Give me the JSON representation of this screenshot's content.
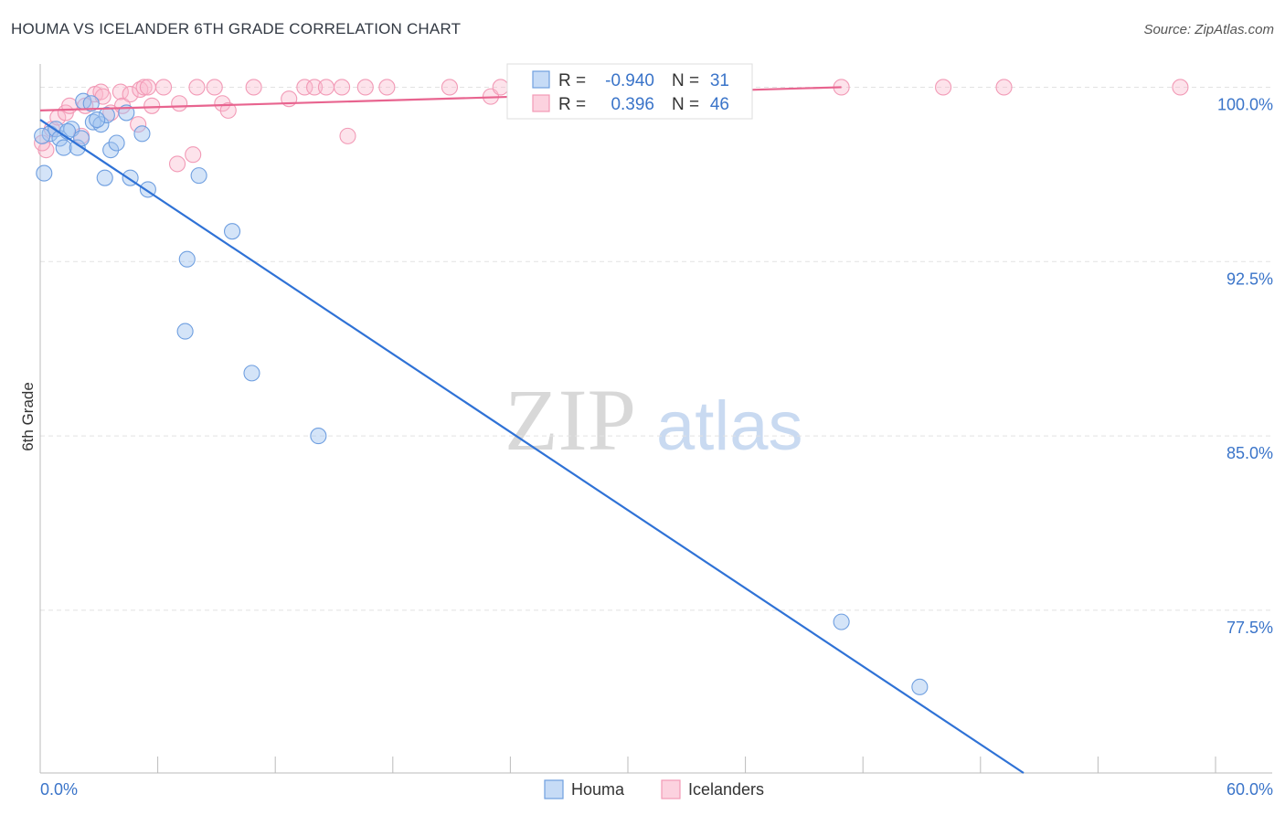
{
  "header": {
    "title": "HOUMA VS ICELANDER 6TH GRADE CORRELATION CHART",
    "source": "Source: ZipAtlas.com"
  },
  "watermark": {
    "zip": "ZIP",
    "atlas": "atlas"
  },
  "stats": {
    "rows": [
      {
        "r_label": "R =",
        "r_value": "-0.940",
        "n_label": "N =",
        "n_value": "31",
        "color": "#6f9fe0"
      },
      {
        "r_label": "R =",
        "r_value": "0.396",
        "n_label": "N =",
        "n_value": "46",
        "color": "#f29ab6"
      }
    ]
  },
  "legend": {
    "items": [
      {
        "label": "Houma",
        "color": "#6f9fe0"
      },
      {
        "label": "Icelanders",
        "color": "#f29ab6"
      }
    ]
  },
  "chart_data": {
    "type": "scatter",
    "title": "HOUMA VS ICELANDER 6TH GRADE CORRELATION CHART",
    "xlabel": "",
    "ylabel": "6th Grade",
    "xlim": [
      0,
      60
    ],
    "ylim": [
      70.5,
      101
    ],
    "x_tick_labels": [
      "0.0%",
      "60.0%"
    ],
    "y_ticks": [
      100,
      92.5,
      85,
      77.5
    ],
    "y_tick_labels": [
      "100.0%",
      "92.5%",
      "85.0%",
      "77.5%"
    ],
    "grid": true,
    "series": [
      {
        "name": "Houma",
        "color": "#6f9fe0",
        "trend": {
          "x": [
            0,
            50.2
          ],
          "y": [
            98.6,
            70.5
          ]
        },
        "points": [
          [
            0.2,
            96.3
          ],
          [
            0.5,
            98.0
          ],
          [
            0.8,
            98.2
          ],
          [
            1.0,
            97.8
          ],
          [
            1.2,
            97.4
          ],
          [
            1.6,
            98.2
          ],
          [
            1.9,
            97.4
          ],
          [
            2.1,
            97.8
          ],
          [
            2.2,
            99.4
          ],
          [
            2.6,
            99.3
          ],
          [
            2.7,
            98.5
          ],
          [
            3.1,
            98.4
          ],
          [
            3.4,
            98.8
          ],
          [
            3.3,
            96.1
          ],
          [
            3.6,
            97.3
          ],
          [
            3.9,
            97.6
          ],
          [
            4.4,
            98.9
          ],
          [
            4.6,
            96.1
          ],
          [
            5.2,
            98.0
          ],
          [
            5.5,
            95.6
          ],
          [
            7.4,
            89.5
          ],
          [
            7.5,
            92.6
          ],
          [
            8.1,
            96.2
          ],
          [
            9.8,
            93.8
          ],
          [
            10.8,
            87.7
          ],
          [
            14.2,
            85.0
          ],
          [
            40.9,
            77.0
          ],
          [
            44.9,
            74.2
          ],
          [
            1.4,
            98.1
          ],
          [
            2.9,
            98.6
          ],
          [
            0.1,
            97.9
          ]
        ]
      },
      {
        "name": "Icelanders",
        "color": "#f29ab6",
        "trend": {
          "x": [
            0,
            40.9
          ],
          "y": [
            99.0,
            100.0
          ]
        },
        "points": [
          [
            0.3,
            97.3
          ],
          [
            0.6,
            98.2
          ],
          [
            0.9,
            98.7
          ],
          [
            1.3,
            98.9
          ],
          [
            1.5,
            99.2
          ],
          [
            2.1,
            97.9
          ],
          [
            2.3,
            99.2
          ],
          [
            2.8,
            99.7
          ],
          [
            3.1,
            99.8
          ],
          [
            3.2,
            99.6
          ],
          [
            3.6,
            98.9
          ],
          [
            4.1,
            99.8
          ],
          [
            4.2,
            99.2
          ],
          [
            4.6,
            99.7
          ],
          [
            5.0,
            98.4
          ],
          [
            5.1,
            99.9
          ],
          [
            5.3,
            100.0
          ],
          [
            5.5,
            100.0
          ],
          [
            5.7,
            99.2
          ],
          [
            6.3,
            100.0
          ],
          [
            7.0,
            96.7
          ],
          [
            7.1,
            99.3
          ],
          [
            7.8,
            97.1
          ],
          [
            8.0,
            100.0
          ],
          [
            8.9,
            100.0
          ],
          [
            9.3,
            99.3
          ],
          [
            9.6,
            99.0
          ],
          [
            10.9,
            100.0
          ],
          [
            12.7,
            99.5
          ],
          [
            13.5,
            100.0
          ],
          [
            14.0,
            100.0
          ],
          [
            14.6,
            100.0
          ],
          [
            15.4,
            100.0
          ],
          [
            15.7,
            97.9
          ],
          [
            16.6,
            100.0
          ],
          [
            17.7,
            100.0
          ],
          [
            20.9,
            100.0
          ],
          [
            23.0,
            99.6
          ],
          [
            23.5,
            100.0
          ],
          [
            26.0,
            99.3
          ],
          [
            26.7,
            100.0
          ],
          [
            40.9,
            100.0
          ],
          [
            46.1,
            100.0
          ],
          [
            49.2,
            100.0
          ],
          [
            58.2,
            100.0
          ],
          [
            0.1,
            97.6
          ]
        ]
      }
    ]
  }
}
